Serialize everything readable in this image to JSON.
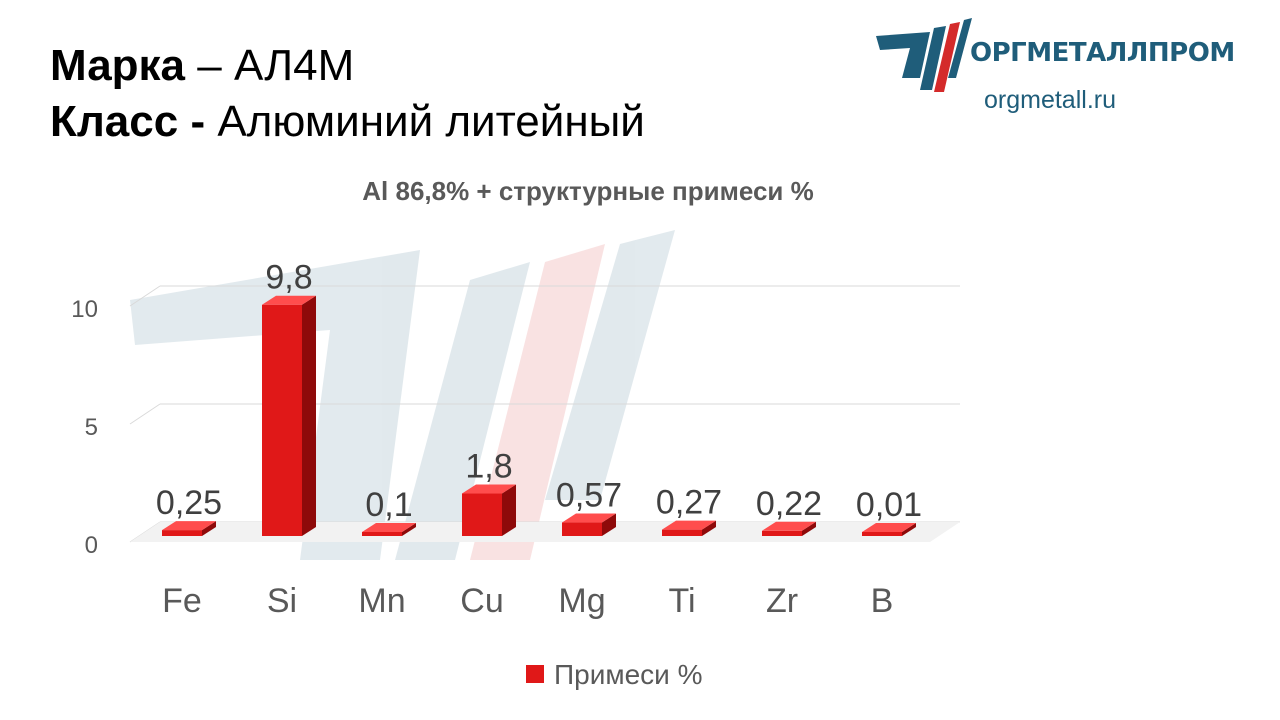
{
  "header": {
    "grade_label": "Марка",
    "grade_value": " – АЛ4М",
    "class_label": "Класс -",
    "class_value": " Алюминий литейный"
  },
  "logo": {
    "name": "ОРГМЕТАЛЛПРОМ",
    "url": "orgmetall.ru",
    "colors": {
      "blue": "#1f5d7a",
      "red": "#d42a2a"
    }
  },
  "chart_data": {
    "type": "bar",
    "title": "Al 86,8% + структурные примеси %",
    "categories": [
      "Fe",
      "Si",
      "Mn",
      "Cu",
      "Mg",
      "Ti",
      "Zr",
      "B"
    ],
    "series": [
      {
        "name": "Примеси %",
        "values": [
          0.25,
          9.8,
          0.1,
          1.8,
          0.57,
          0.27,
          0.22,
          0.01
        ],
        "labels": [
          "0,25",
          "9,8",
          "0,1",
          "1,8",
          "0,57",
          "0,27",
          "0,22",
          "0,01"
        ],
        "color": "#e01818"
      }
    ],
    "yticks": [
      0,
      5,
      10
    ],
    "ylim": [
      0,
      11
    ],
    "grid": true,
    "legend": "bottom",
    "style": "3d"
  }
}
